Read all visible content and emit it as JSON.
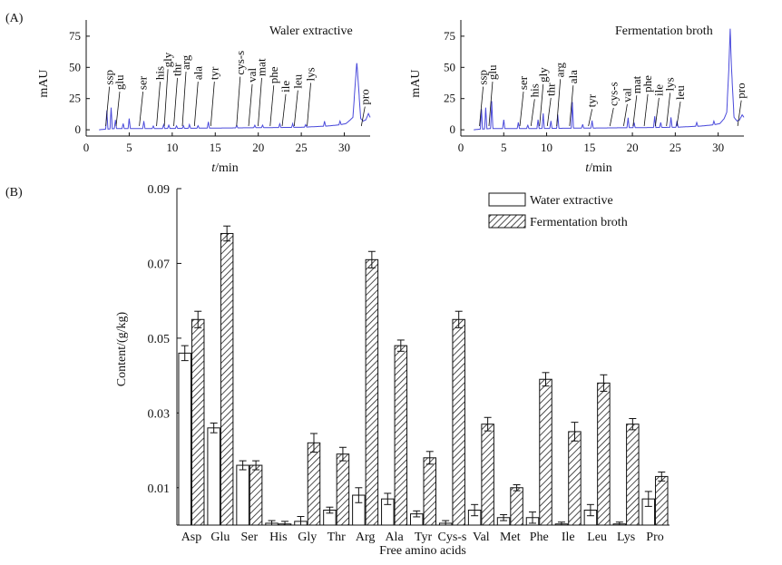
{
  "panel_a_label": "(A)",
  "panel_b_label": "(B)",
  "chart_data": [
    {
      "type": "line",
      "title": "Waler extractive",
      "xlabel_italic": "t",
      "xlabel_rest": "/min",
      "ylabel": "mAU",
      "xlim": [
        0,
        33
      ],
      "ylim": [
        -5,
        88
      ],
      "xticks": [
        0,
        5,
        10,
        15,
        20,
        25,
        30
      ],
      "yticks": [
        0,
        25,
        50,
        75
      ],
      "baseline": [
        [
          1.5,
          0
        ],
        [
          2.2,
          0.5
        ],
        [
          3.5,
          1
        ],
        [
          8,
          1
        ],
        [
          17,
          1.5
        ],
        [
          25,
          2
        ],
        [
          28,
          3
        ],
        [
          29.5,
          4
        ],
        [
          30.2,
          5
        ],
        [
          30.7,
          8
        ],
        [
          31.0,
          10
        ],
        [
          31.3,
          40
        ],
        [
          31.45,
          54
        ],
        [
          31.6,
          40
        ],
        [
          31.9,
          9
        ],
        [
          32.2,
          7
        ],
        [
          32.5,
          8
        ],
        [
          32.8,
          13
        ],
        [
          33,
          10
        ]
      ],
      "peaks": [
        [
          2.4,
          15
        ],
        [
          2.9,
          17
        ],
        [
          3.4,
          7
        ],
        [
          4.3,
          4
        ],
        [
          5.0,
          8
        ],
        [
          6.7,
          6
        ],
        [
          7.8,
          2
        ],
        [
          9.0,
          3
        ],
        [
          9.6,
          3
        ],
        [
          10.5,
          2
        ],
        [
          11.3,
          2
        ],
        [
          12.0,
          3
        ],
        [
          13.0,
          2
        ],
        [
          14.2,
          5
        ],
        [
          17.5,
          2
        ],
        [
          19.6,
          2
        ],
        [
          20.5,
          2
        ],
        [
          22.5,
          3
        ],
        [
          24.0,
          3
        ],
        [
          25.5,
          2
        ],
        [
          27.7,
          4
        ],
        [
          29.5,
          3
        ]
      ],
      "peak_labels": [
        {
          "text": "ssp",
          "x": 2.7,
          "y": 36
        },
        {
          "text": "glu",
          "x": 3.9,
          "y": 32
        },
        {
          "text": "ser",
          "x": 6.6,
          "y": 32
        },
        {
          "text": "his",
          "x": 8.6,
          "y": 40
        },
        {
          "text": "gly",
          "x": 9.5,
          "y": 50
        },
        {
          "text": "thr",
          "x": 10.6,
          "y": 43
        },
        {
          "text": "arg",
          "x": 11.6,
          "y": 48
        },
        {
          "text": "ala",
          "x": 13.0,
          "y": 40
        },
        {
          "text": "tyr",
          "x": 14.9,
          "y": 40
        },
        {
          "text": "cys-s",
          "x": 17.9,
          "y": 44
        },
        {
          "text": "val",
          "x": 19.3,
          "y": 38
        },
        {
          "text": "mat",
          "x": 20.4,
          "y": 43
        },
        {
          "text": "phe",
          "x": 21.8,
          "y": 37
        },
        {
          "text": "ile",
          "x": 23.2,
          "y": 30
        },
        {
          "text": "leu",
          "x": 24.6,
          "y": 33
        },
        {
          "text": "lys",
          "x": 26.1,
          "y": 39
        },
        {
          "text": "pro",
          "x": 32.4,
          "y": 20
        }
      ]
    },
    {
      "type": "line",
      "title": "Fermentation broth",
      "xlabel_italic": "t",
      "xlabel_rest": "/min",
      "ylabel": "mAU",
      "xlim": [
        0,
        33
      ],
      "ylim": [
        -5,
        88
      ],
      "xticks": [
        0,
        5,
        10,
        15,
        20,
        25,
        30
      ],
      "yticks": [
        0,
        25,
        50,
        75
      ],
      "baseline": [
        [
          1.5,
          0
        ],
        [
          2.2,
          0.5
        ],
        [
          3.5,
          1
        ],
        [
          8,
          1
        ],
        [
          17,
          1.5
        ],
        [
          25,
          2
        ],
        [
          28,
          3
        ],
        [
          29.5,
          4
        ],
        [
          30.2,
          5
        ],
        [
          30.7,
          9
        ],
        [
          31.0,
          14
        ],
        [
          31.25,
          50
        ],
        [
          31.4,
          81
        ],
        [
          31.55,
          50
        ],
        [
          31.85,
          10
        ],
        [
          32.2,
          7
        ],
        [
          32.5,
          8
        ],
        [
          32.8,
          12
        ],
        [
          33,
          10
        ]
      ],
      "peaks": [
        [
          2.4,
          16
        ],
        [
          2.9,
          17
        ],
        [
          3.6,
          22
        ],
        [
          5.0,
          7
        ],
        [
          6.7,
          5
        ],
        [
          7.8,
          3
        ],
        [
          9.0,
          7
        ],
        [
          9.6,
          12
        ],
        [
          10.5,
          6
        ],
        [
          11.3,
          11
        ],
        [
          13.0,
          21
        ],
        [
          14.2,
          3
        ],
        [
          15.3,
          6
        ],
        [
          19.5,
          8
        ],
        [
          20.2,
          4
        ],
        [
          22.6,
          9
        ],
        [
          23.3,
          4
        ],
        [
          24.5,
          8
        ],
        [
          25.2,
          5
        ],
        [
          27.5,
          3
        ],
        [
          29.5,
          3
        ]
      ],
      "peak_labels": [
        {
          "text": "ssp",
          "x": 2.6,
          "y": 36
        },
        {
          "text": "glu",
          "x": 3.7,
          "y": 40
        },
        {
          "text": "ser",
          "x": 7.3,
          "y": 32
        },
        {
          "text": "his",
          "x": 8.6,
          "y": 26
        },
        {
          "text": "gly",
          "x": 9.6,
          "y": 38
        },
        {
          "text": "thr",
          "x": 10.5,
          "y": 27
        },
        {
          "text": "arg",
          "x": 11.6,
          "y": 42
        },
        {
          "text": "ala",
          "x": 13.1,
          "y": 37
        },
        {
          "text": "tyr",
          "x": 15.3,
          "y": 18
        },
        {
          "text": "cys-s",
          "x": 17.8,
          "y": 19
        },
        {
          "text": "val",
          "x": 19.4,
          "y": 22
        },
        {
          "text": "mat",
          "x": 20.5,
          "y": 29
        },
        {
          "text": "phe",
          "x": 21.8,
          "y": 30
        },
        {
          "text": "ile",
          "x": 23.1,
          "y": 27
        },
        {
          "text": "lys",
          "x": 24.4,
          "y": 31
        },
        {
          "text": "leu",
          "x": 25.6,
          "y": 24
        },
        {
          "text": "pro",
          "x": 32.7,
          "y": 25
        }
      ]
    },
    {
      "type": "bar",
      "xlabel": "Free amino acids",
      "ylabel": "Content/(g/kg)",
      "ylim": [
        0,
        0.09
      ],
      "yticks": [
        0.01,
        0.03,
        0.05,
        0.07,
        0.09
      ],
      "ytick_labels": [
        "0.01",
        "0.03",
        "0.05",
        "0.07",
        "0.09"
      ],
      "legend_position": "top-right",
      "categories": [
        "Asp",
        "Glu",
        "Ser",
        "His",
        "Gly",
        "Thr",
        "Arg",
        "Ala",
        "Tyr",
        "Cys-s",
        "Val",
        "Met",
        "Phe",
        "Ile",
        "Leu",
        "Lys",
        "Pro"
      ],
      "series": [
        {
          "name": "Water extractive",
          "fill": "white",
          "values": [
            0.046,
            0.026,
            0.016,
            0.0005,
            0.001,
            0.004,
            0.008,
            0.007,
            0.003,
            0.0005,
            0.004,
            0.002,
            0.002,
            0.0003,
            0.004,
            0.0003,
            0.007
          ],
          "errors": [
            0.002,
            0.0013,
            0.0012,
            0.0007,
            0.0013,
            0.0008,
            0.002,
            0.0015,
            0.0008,
            0.0007,
            0.0015,
            0.0008,
            0.0015,
            0.0005,
            0.0015,
            0.0005,
            0.002
          ]
        },
        {
          "name": "Fermentation broth",
          "fill": "hatched",
          "values": [
            0.055,
            0.078,
            0.016,
            0.0003,
            0.022,
            0.019,
            0.071,
            0.048,
            0.018,
            0.055,
            0.027,
            0.01,
            0.039,
            0.025,
            0.038,
            0.027,
            0.013
          ],
          "errors": [
            0.0022,
            0.002,
            0.0012,
            0.0007,
            0.0025,
            0.0018,
            0.0022,
            0.0015,
            0.0017,
            0.0022,
            0.0018,
            0.0008,
            0.0018,
            0.0025,
            0.0022,
            0.0015,
            0.0012
          ]
        }
      ]
    }
  ]
}
